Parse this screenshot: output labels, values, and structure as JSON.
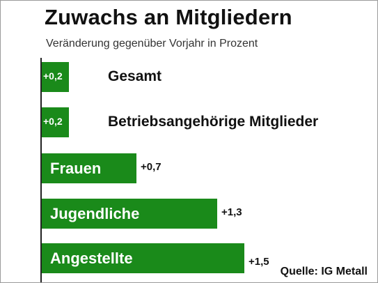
{
  "colors": {
    "bar": "#1a8a1a",
    "text": "#111111",
    "background": "#ffffff"
  },
  "chart_data": {
    "type": "bar",
    "orientation": "horizontal",
    "title": "Zuwachs an Mitgliedern",
    "subtitle": "Veränderung gegenüber Vorjahr in Prozent",
    "categories": [
      "Gesamt",
      "Betriebsangehörige Mitglieder",
      "Frauen",
      "Jugendliche",
      "Angestellte"
    ],
    "values": [
      0.2,
      0.2,
      0.7,
      1.3,
      1.5
    ],
    "value_labels": [
      "+0,2",
      "+0,2",
      "+0,7",
      "+1,3",
      "+1,5"
    ],
    "xlim": [
      0,
      1.5
    ],
    "grid": false,
    "legend": "none",
    "source": "Quelle: IG Metall"
  }
}
